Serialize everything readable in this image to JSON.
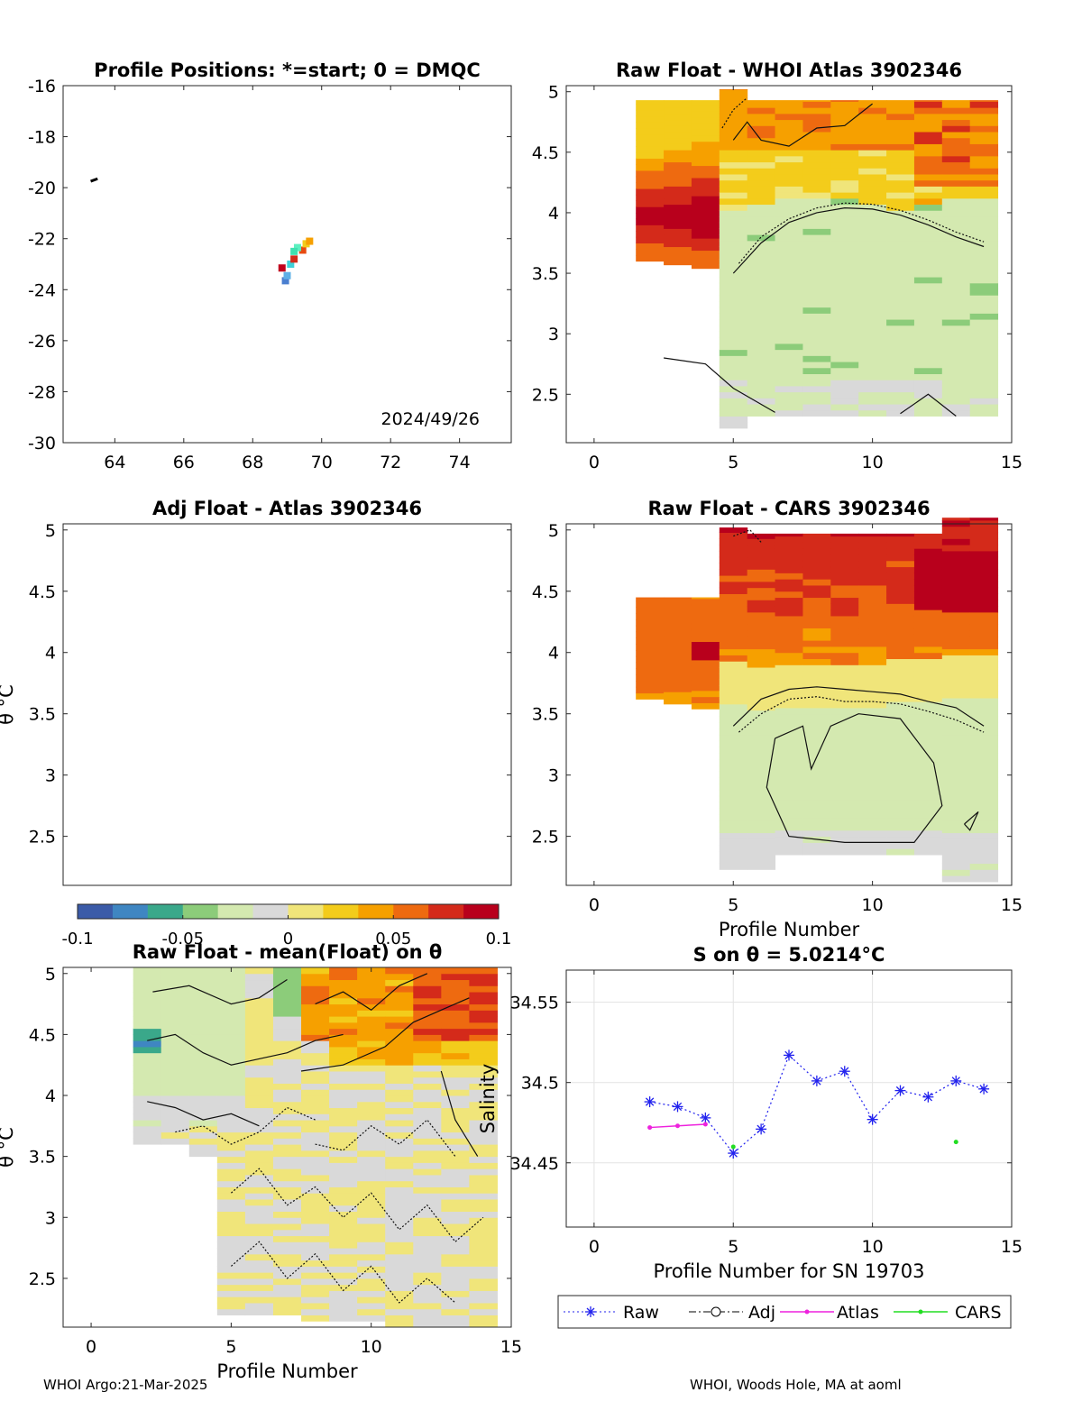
{
  "footer": {
    "left": "WHOI Argo:21-Mar-2025",
    "right": "WHOI, Woods Hole, MA at aoml"
  },
  "colormap": {
    "ticks": [
      -0.1,
      -0.05,
      0,
      0.05,
      0.1
    ],
    "tick_labels": [
      "-0.1",
      "-0.05",
      "0",
      "0.05",
      "0.1"
    ],
    "colors": [
      "#3b5ba8",
      "#3f86c2",
      "#3aa88a",
      "#8ccc7a",
      "#d4e9b0",
      "#d9d9d9",
      "#f0e57a",
      "#f3cc1b",
      "#f6a000",
      "#ee6a10",
      "#d42a1a",
      "#b8001c"
    ]
  },
  "chart_data": [
    {
      "id": "positions",
      "type": "scatter",
      "title": "Profile Positions: *=start; 0 = DMQC",
      "xlabel": "",
      "ylabel": "",
      "xlim": [
        62.5,
        75.5
      ],
      "ylim": [
        -30,
        -16
      ],
      "xticks": [
        64,
        66,
        68,
        70,
        72,
        74
      ],
      "yticks": [
        -30,
        -28,
        -26,
        -24,
        -22,
        -20,
        -18,
        -16
      ],
      "annotation": "2024/49/26",
      "points": [
        {
          "x": 68.95,
          "y": -23.65,
          "color": "#4a7fd0"
        },
        {
          "x": 69.0,
          "y": -23.45,
          "color": "#5fb0e6"
        },
        {
          "x": 69.1,
          "y": -23.0,
          "color": "#3fd0d8"
        },
        {
          "x": 68.85,
          "y": -23.15,
          "color": "#c0001c"
        },
        {
          "x": 69.2,
          "y": -22.8,
          "color": "#d42a1a"
        },
        {
          "x": 69.45,
          "y": -22.45,
          "color": "#e84a10"
        },
        {
          "x": 69.3,
          "y": -22.35,
          "color": "#5cf0c0"
        },
        {
          "x": 69.2,
          "y": -22.5,
          "color": "#3fe0b0"
        },
        {
          "x": 69.55,
          "y": -22.2,
          "color": "#f3cc1b"
        },
        {
          "x": 69.65,
          "y": -22.1,
          "color": "#f6a000"
        }
      ],
      "track": [
        [
          63.3,
          -19.75
        ],
        [
          63.5,
          -19.65
        ]
      ]
    },
    {
      "id": "raw-atlas",
      "type": "heatmap",
      "title": "Raw Float - WHOI Atlas  3902346",
      "xlim": [
        -1,
        15
      ],
      "ylim": [
        2.1,
        5.05
      ],
      "xticks": [
        0,
        5,
        10,
        15
      ],
      "yticks": [
        2.5,
        3,
        3.5,
        4,
        4.5,
        5
      ],
      "ytick_labels": [
        "2.5",
        "3",
        "3.5",
        "4",
        "4.5",
        "5"
      ]
    },
    {
      "id": "adj-atlas",
      "type": "heatmap",
      "title": "Adj Float - Atlas  3902346",
      "ylabel": "θ °C",
      "xlim": [
        -1,
        15
      ],
      "ylim": [
        2.1,
        5.05
      ],
      "yticks": [
        2.5,
        3,
        3.5,
        4,
        4.5,
        5
      ],
      "ytick_labels": [
        "2.5",
        "3",
        "3.5",
        "4",
        "4.5",
        "5"
      ]
    },
    {
      "id": "raw-cars",
      "type": "heatmap",
      "title": "Raw Float - CARS  3902346",
      "xlabel": "Profile Number",
      "xlim": [
        -1,
        15
      ],
      "ylim": [
        2.1,
        5.05
      ],
      "xticks": [
        0,
        5,
        10,
        15
      ],
      "yticks": [
        2.5,
        3,
        3.5,
        4,
        4.5,
        5
      ],
      "ytick_labels": [
        "2.5",
        "3",
        "3.5",
        "4",
        "4.5",
        "5"
      ]
    },
    {
      "id": "raw-mean",
      "type": "heatmap",
      "title": "Raw Float - mean(Float) on θ",
      "xlabel": "Profile Number",
      "ylabel": "θ °C",
      "xlim": [
        -1,
        15
      ],
      "ylim": [
        2.1,
        5.05
      ],
      "xticks": [
        0,
        5,
        10,
        15
      ],
      "yticks": [
        2.5,
        3,
        3.5,
        4,
        4.5,
        5
      ],
      "ytick_labels": [
        "2.5",
        "3",
        "3.5",
        "4",
        "4.5",
        "5"
      ]
    },
    {
      "id": "salinity",
      "type": "line",
      "title": "S on θ = 5.0214°C",
      "xlabel": "Profile Number for SN 19703",
      "ylabel": "Salinity",
      "xlim": [
        -1,
        15
      ],
      "ylim": [
        34.41,
        34.57
      ],
      "xticks": [
        0,
        5,
        10,
        15
      ],
      "yticks": [
        34.45,
        34.5,
        34.55
      ],
      "ytick_labels": [
        "34.45",
        "34.5",
        "34.55"
      ],
      "grid": true,
      "legend_position": "bottom-outside",
      "series": [
        {
          "name": "Raw",
          "color": "#2222ee",
          "x": [
            2,
            3,
            4,
            5,
            6,
            7,
            8,
            9,
            10,
            11,
            12,
            13,
            14
          ],
          "y": [
            34.488,
            34.485,
            34.478,
            34.456,
            34.471,
            34.517,
            34.501,
            34.507,
            34.477,
            34.495,
            34.491,
            34.501,
            34.496
          ]
        },
        {
          "name": "Adj",
          "color": "#000000",
          "x": [],
          "y": []
        },
        {
          "name": "Atlas",
          "color": "#ee22dd",
          "x": [
            2,
            3,
            4
          ],
          "y": [
            34.472,
            34.473,
            34.474
          ]
        },
        {
          "name": "CARS",
          "color": "#22dd22",
          "x": [
            5,
            13
          ],
          "y": [
            34.46,
            34.463
          ]
        }
      ]
    }
  ]
}
